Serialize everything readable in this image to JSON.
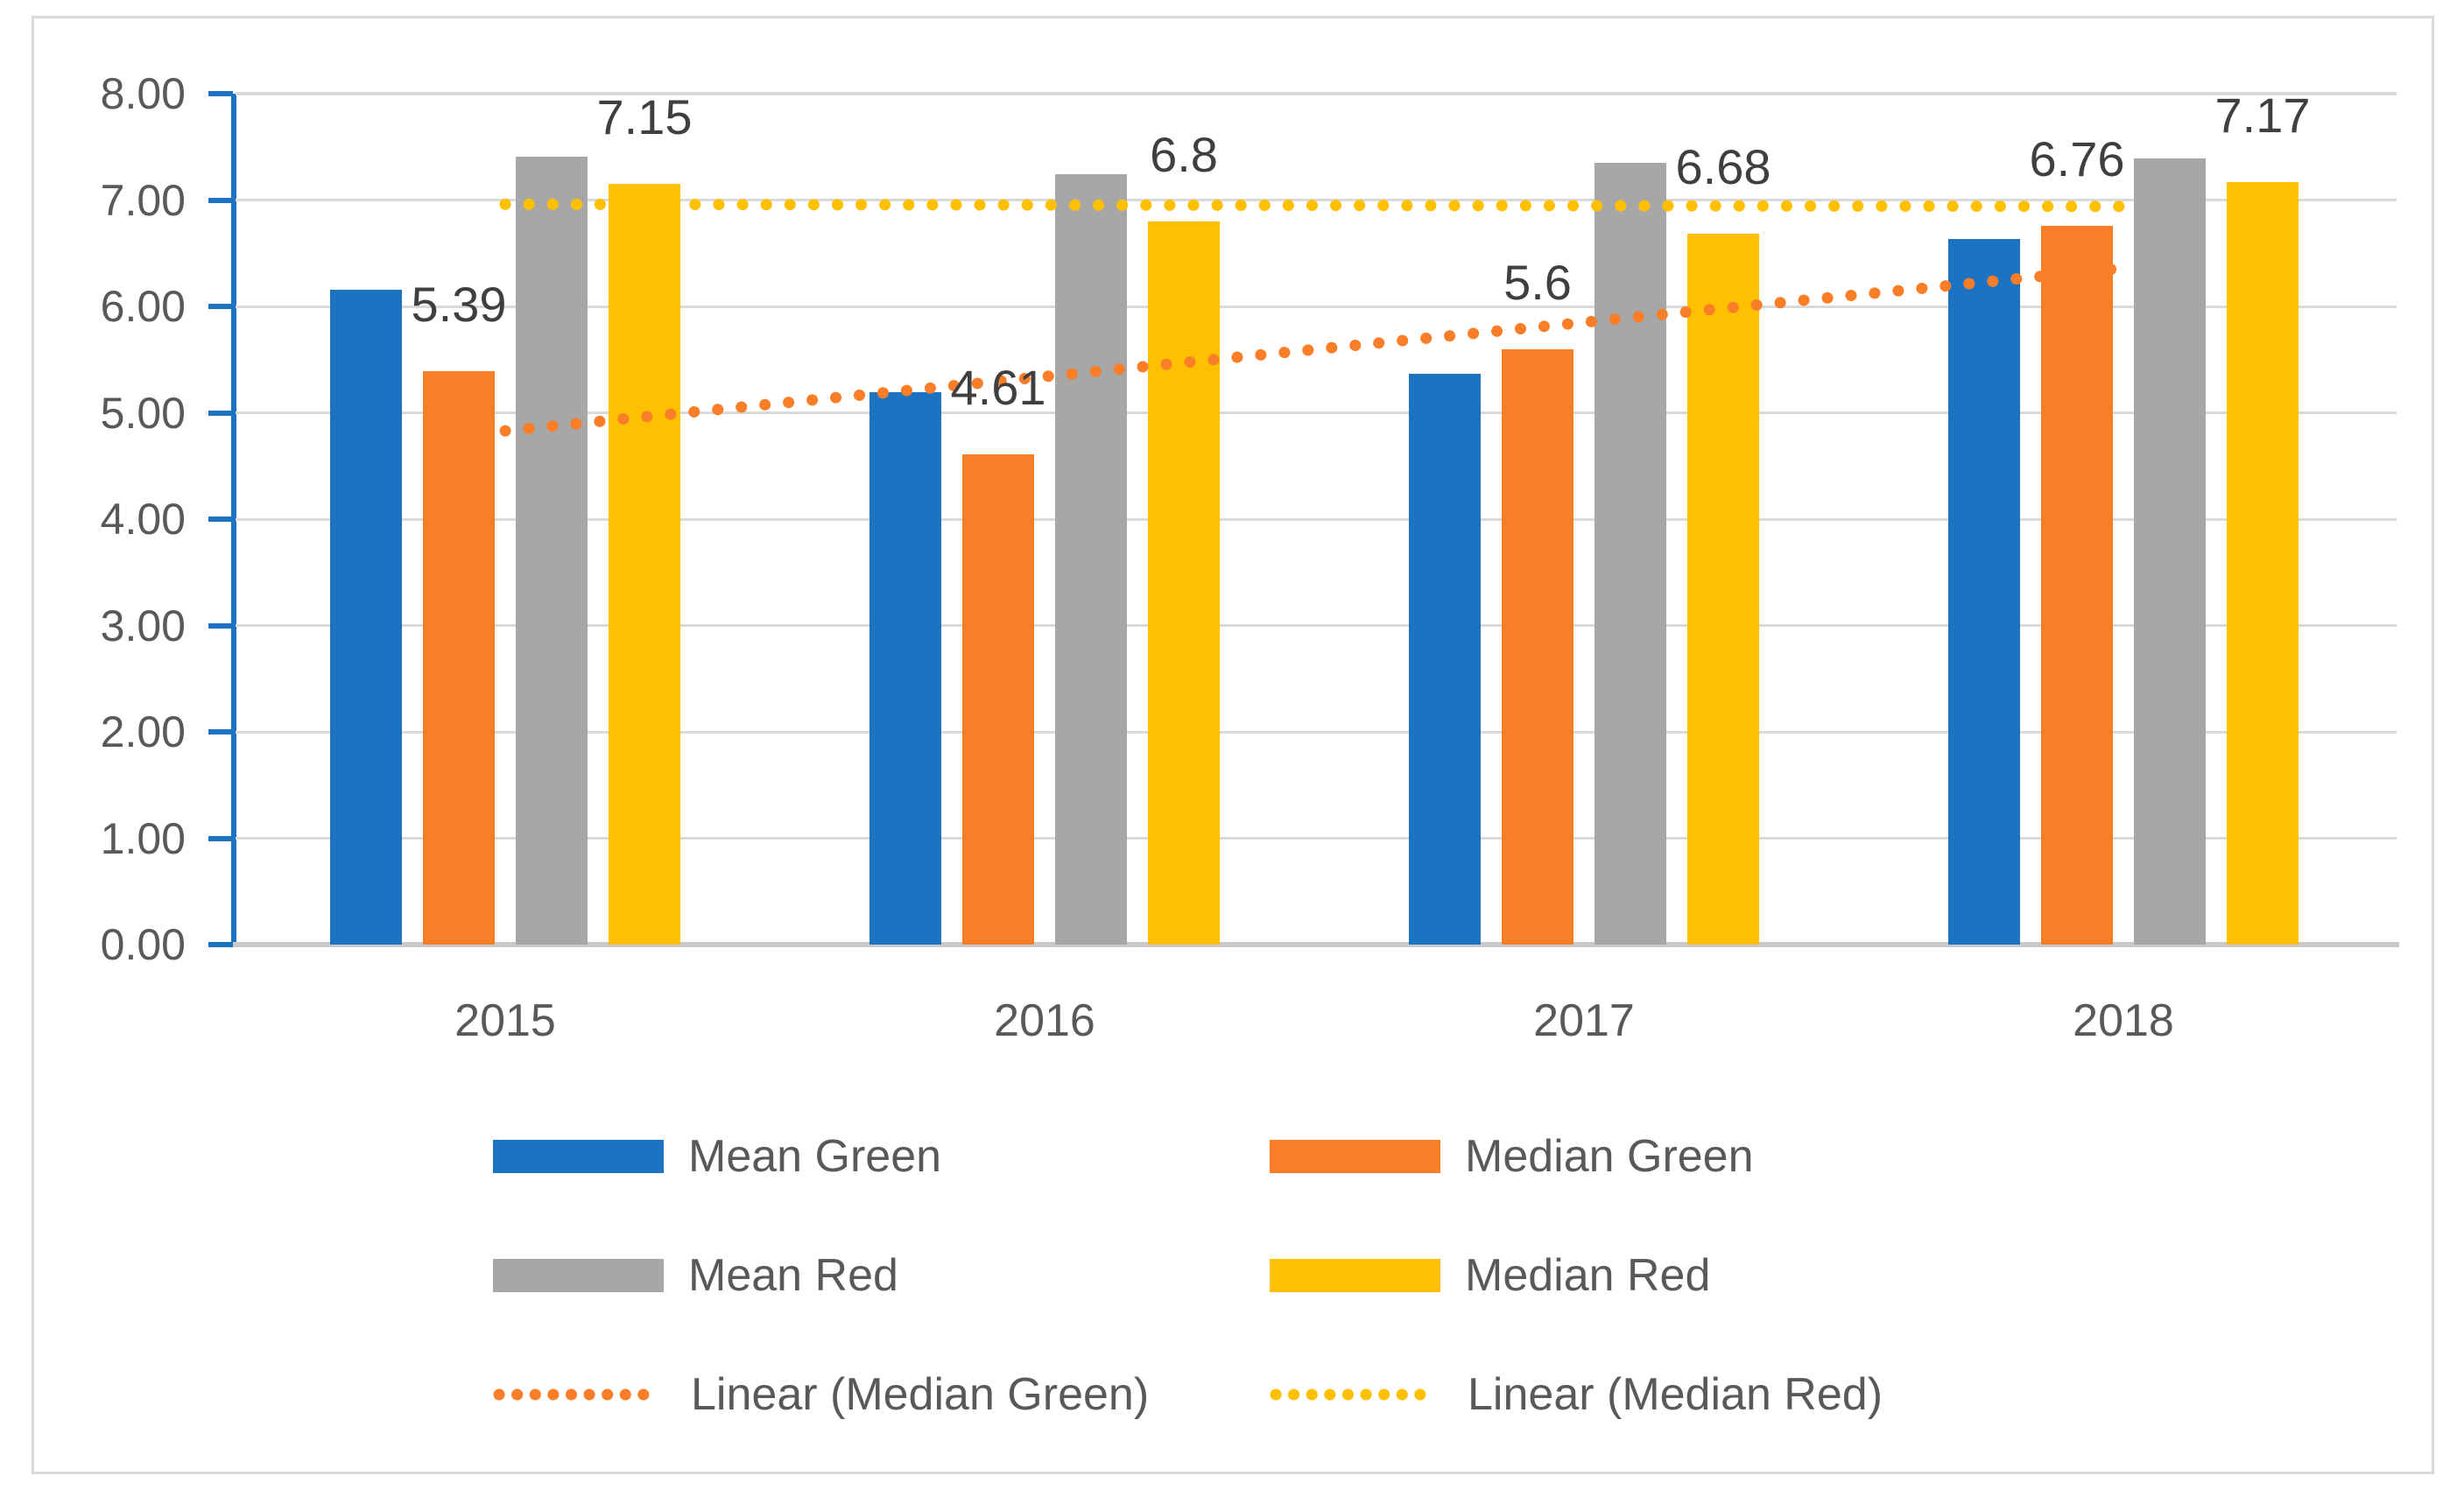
{
  "chart_data": {
    "type": "bar",
    "title": "",
    "categories": [
      "2015",
      "2016",
      "2017",
      "2018"
    ],
    "series": [
      {
        "name": "Mean Green",
        "color": "#1C73C4",
        "values": [
          6.16,
          5.19,
          5.37,
          6.63
        ],
        "labels": null
      },
      {
        "name": "Median Green",
        "color": "#F97E27",
        "values": [
          5.39,
          4.61,
          5.6,
          6.76
        ],
        "labels": [
          "5.39",
          "4.61",
          "5.6",
          "6.76"
        ]
      },
      {
        "name": "Mean Red",
        "color": "#A7A7A7",
        "values": [
          7.41,
          7.24,
          7.35,
          7.39
        ],
        "labels": null
      },
      {
        "name": "Median Red",
        "color": "#FFC002",
        "values": [
          7.15,
          6.8,
          6.68,
          7.17
        ],
        "labels": [
          "7.15",
          "6.8",
          "6.68",
          "7.17"
        ]
      }
    ],
    "trendlines": [
      {
        "name": "Linear (Median Green)",
        "color": "#F97E27",
        "start": 4.83,
        "end": 6.36
      },
      {
        "name": "Linear (Median Red)",
        "color": "#FFC002",
        "start": 6.96,
        "end": 6.94
      }
    ],
    "y_axis": {
      "min": 0,
      "max": 8,
      "step": 1,
      "tick_labels": [
        "0.00",
        "1.00",
        "2.00",
        "3.00",
        "4.00",
        "5.00",
        "6.00",
        "7.00",
        "8.00"
      ]
    },
    "xlabel": "",
    "ylabel": "",
    "grid": true,
    "legend_position": "bottom",
    "colors": {
      "grid": "#D9D9D9",
      "zero_axis": "#C9C9C9",
      "y_axis": "#1C73C4",
      "tick_text": "#595959",
      "data_label_text": "#3F3F3F",
      "legend_text": "#595959",
      "frame_border": "#D9D9D9",
      "background": "#FFFFFF"
    }
  }
}
